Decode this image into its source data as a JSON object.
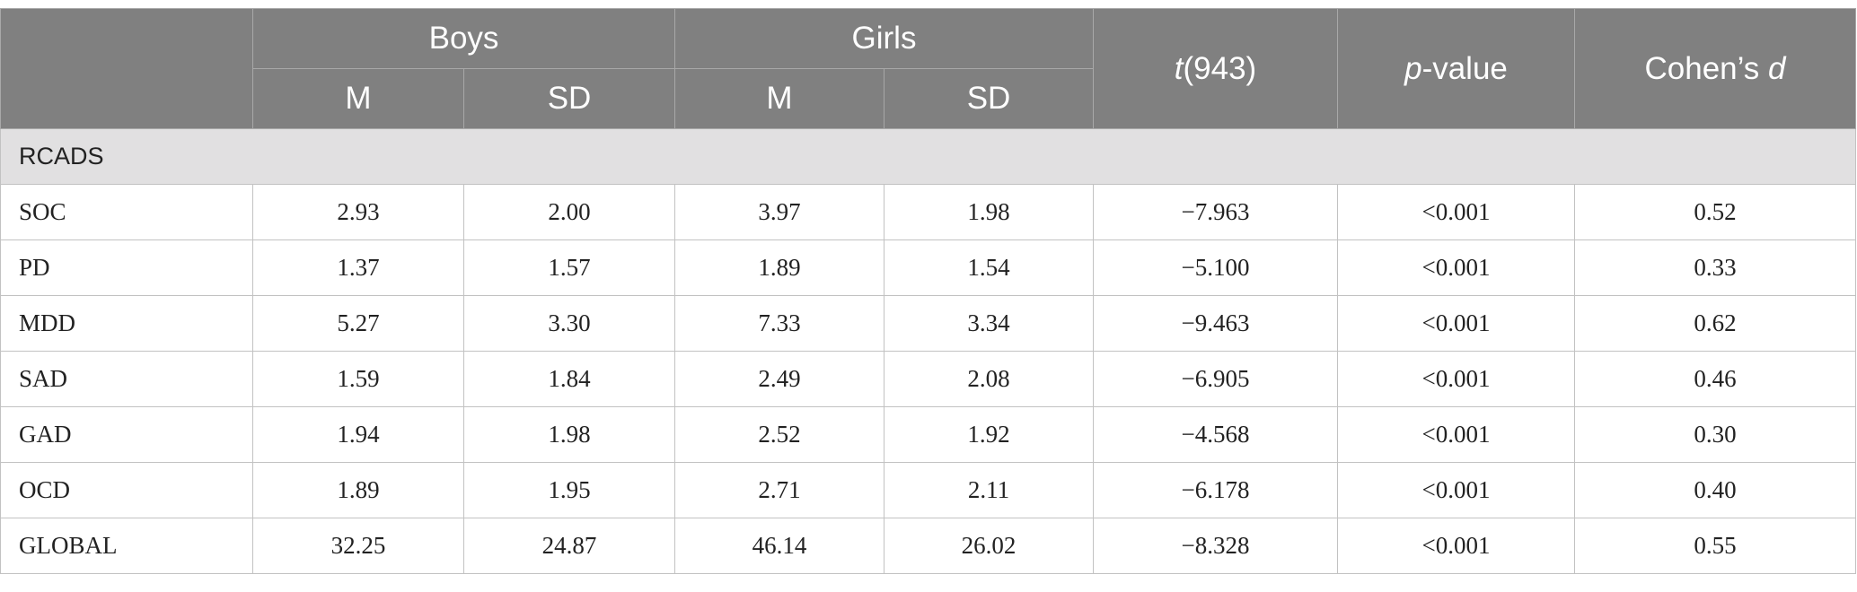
{
  "header": {
    "group1": "Boys",
    "group2": "Girls",
    "t_stat_italic": "t",
    "t_stat_rest": "(943)",
    "p_italic": "p",
    "p_rest": "-value",
    "cohen_prefix": "Cohen’s ",
    "cohen_italic": "d",
    "sub": [
      "M",
      "SD",
      "M",
      "SD"
    ]
  },
  "section_label": "RCADS",
  "rows": [
    {
      "label": "SOC",
      "boys_m": "2.93",
      "boys_sd": "2.00",
      "girls_m": "3.97",
      "girls_sd": "1.98",
      "t": "−7.963",
      "p": "<0.001",
      "d": "0.52"
    },
    {
      "label": "PD",
      "boys_m": "1.37",
      "boys_sd": "1.57",
      "girls_m": "1.89",
      "girls_sd": "1.54",
      "t": "−5.100",
      "p": "<0.001",
      "d": "0.33"
    },
    {
      "label": "MDD",
      "boys_m": "5.27",
      "boys_sd": "3.30",
      "girls_m": "7.33",
      "girls_sd": "3.34",
      "t": "−9.463",
      "p": "<0.001",
      "d": "0.62"
    },
    {
      "label": "SAD",
      "boys_m": "1.59",
      "boys_sd": "1.84",
      "girls_m": "2.49",
      "girls_sd": "2.08",
      "t": "−6.905",
      "p": "<0.001",
      "d": "0.46"
    },
    {
      "label": "GAD",
      "boys_m": "1.94",
      "boys_sd": "1.98",
      "girls_m": "2.52",
      "girls_sd": "1.92",
      "t": "−4.568",
      "p": "<0.001",
      "d": "0.30"
    },
    {
      "label": "OCD",
      "boys_m": "1.89",
      "boys_sd": "1.95",
      "girls_m": "2.71",
      "girls_sd": "2.11",
      "t": "−6.178",
      "p": "<0.001",
      "d": "0.40"
    },
    {
      "label": "GLOBAL",
      "boys_m": "32.25",
      "boys_sd": "24.87",
      "girls_m": "46.14",
      "girls_sd": "26.02",
      "t": "−8.328",
      "p": "<0.001",
      "d": "0.55"
    }
  ]
}
